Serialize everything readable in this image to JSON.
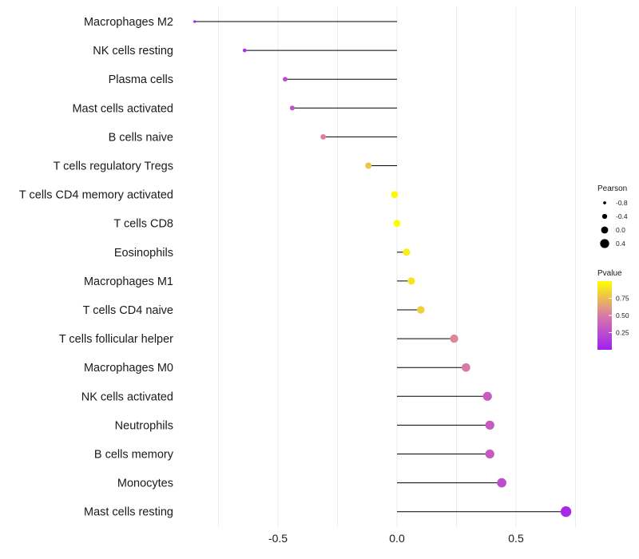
{
  "chart_data": {
    "type": "lollipop",
    "title": "",
    "xlabel": "",
    "ylabel": "",
    "xlim": [
      -0.84,
      1.0
    ],
    "xticks": [
      "-0.5",
      "0.0",
      "0.5"
    ],
    "xtick_values": [
      -0.5,
      0.0,
      0.5
    ],
    "grid": true,
    "categories": [
      "Macrophages M2",
      "NK cells resting",
      "Plasma cells",
      "Mast cells activated",
      "B cells naive",
      "T cells regulatory  Tregs ",
      "T cells CD4 memory activated",
      "T cells CD8",
      "Eosinophils",
      "Macrophages M1",
      "T cells CD4 naive",
      "T cells follicular helper",
      "Macrophages M0",
      "NK cells activated",
      "Neutrophils",
      "B cells memory",
      "Monocytes",
      "Mast cells resting"
    ],
    "values": [
      -0.85,
      -0.64,
      -0.47,
      -0.44,
      -0.31,
      -0.12,
      -0.01,
      0.0,
      0.04,
      0.06,
      0.1,
      0.24,
      0.29,
      0.38,
      0.39,
      0.39,
      0.44,
      0.71
    ],
    "pvalues": [
      0.02,
      0.1,
      0.25,
      0.28,
      0.52,
      0.78,
      0.97,
      0.99,
      0.93,
      0.9,
      0.82,
      0.55,
      0.5,
      0.33,
      0.33,
      0.33,
      0.25,
      0.05
    ],
    "size_legend": {
      "title": "Pearson",
      "entries": [
        "-0.8",
        "-0.4",
        "0.0",
        "0.4"
      ],
      "entry_values": [
        -0.8,
        -0.4,
        0.0,
        0.4
      ]
    },
    "color_legend": {
      "title": "Pvalue",
      "ticks": [
        "0.75",
        "0.50",
        "0.25"
      ],
      "tick_values": [
        0.75,
        0.5,
        0.25
      ],
      "range": [
        0.0,
        1.0
      ],
      "low_color": "#a020f0",
      "mid_color": "#d87aa8",
      "high_color": "#ffff00"
    },
    "line_color": "#000000",
    "grid_color": "#ebebeb"
  }
}
